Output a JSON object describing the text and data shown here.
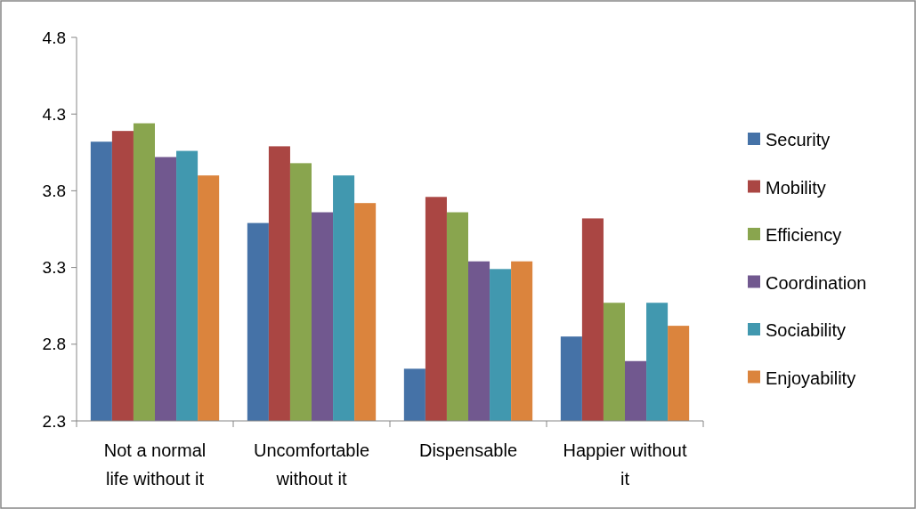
{
  "chart_data": {
    "type": "bar",
    "categories": [
      "Not a normal life without it",
      "Uncomfortable without it",
      "Dispensable",
      "Happier without it"
    ],
    "series": [
      {
        "name": "Security",
        "color": "#4572a7",
        "values": [
          4.12,
          3.59,
          2.64,
          2.85
        ]
      },
      {
        "name": "Mobility",
        "color": "#aa4643",
        "values": [
          4.19,
          4.09,
          3.76,
          3.62
        ]
      },
      {
        "name": "Efficiency",
        "color": "#89a54e",
        "values": [
          4.24,
          3.98,
          3.66,
          3.07
        ]
      },
      {
        "name": "Coordination",
        "color": "#71588f",
        "values": [
          4.02,
          3.66,
          3.34,
          2.69
        ]
      },
      {
        "name": "Sociability",
        "color": "#4198af",
        "values": [
          4.06,
          3.9,
          3.29,
          3.07
        ]
      },
      {
        "name": "Enjoyability",
        "color": "#db843d",
        "values": [
          3.9,
          3.72,
          3.34,
          2.92
        ]
      }
    ],
    "ylim": [
      2.3,
      4.8
    ],
    "yticks": [
      2.3,
      2.8,
      3.3,
      3.8,
      4.3,
      4.8
    ],
    "legend": "right",
    "grid": false
  }
}
